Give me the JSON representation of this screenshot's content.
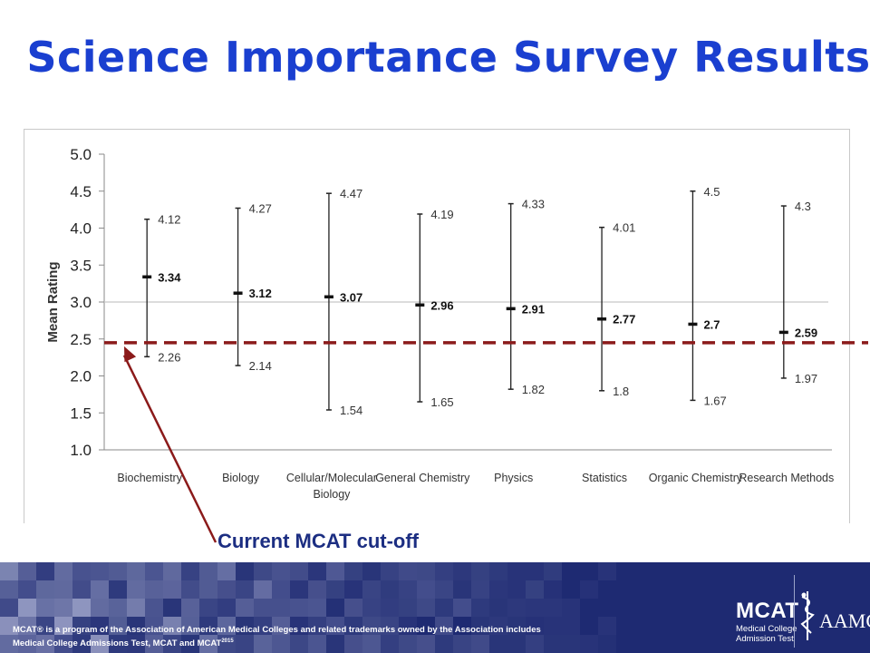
{
  "slide": {
    "title": "Science Importance Survey Results",
    "cutoff_label": "Current MCAT cut-off"
  },
  "chart_data": {
    "type": "error_bar",
    "ylabel": "Mean Rating",
    "ylim": [
      1.0,
      5.0
    ],
    "yticks": [
      "1.0",
      "1.5",
      "2.0",
      "2.5",
      "3.0",
      "3.5",
      "4.0",
      "4.5",
      "5.0"
    ],
    "categories": [
      "Biochemistry",
      "Biology",
      "Cellular/Molecular Biology",
      "General Chemistry",
      "Physics",
      "Statistics",
      "Organic Chemistry",
      "Research Methods"
    ],
    "category_lines": [
      [
        "Biochemistry"
      ],
      [
        "Biology"
      ],
      [
        "Cellular/Molecular",
        "Biology"
      ],
      [
        "General Chemistry"
      ],
      [
        "Physics"
      ],
      [
        "Statistics"
      ],
      [
        "Organic Chemistry"
      ],
      [
        "Research Methods"
      ]
    ],
    "mean": [
      3.34,
      3.12,
      3.07,
      2.96,
      2.91,
      2.77,
      2.7,
      2.59
    ],
    "high": [
      4.12,
      4.27,
      4.47,
      4.19,
      4.33,
      4.01,
      4.5,
      4.3
    ],
    "low": [
      2.26,
      2.14,
      1.54,
      1.65,
      1.82,
      1.8,
      1.67,
      1.97
    ],
    "mean_labels": [
      "3.34",
      "3.12",
      "3.07",
      "2.96",
      "2.91",
      "2.77",
      "2.7",
      "2.59"
    ],
    "high_labels": [
      "4.12",
      "4.27",
      "4.47",
      "4.19",
      "4.33",
      "4.01",
      "4.5",
      "4.3"
    ],
    "low_labels": [
      "2.26",
      "2.14",
      "1.54",
      "1.65",
      "1.82",
      "1.8",
      "1.67",
      "1.97"
    ],
    "reference_lines": [
      {
        "value": 3.0,
        "style": "solid",
        "color": "#c8c8c8"
      }
    ],
    "cutoff_line": {
      "value": 2.45,
      "style": "dashed",
      "color": "#8b1a1a"
    },
    "grid": false,
    "legend": "none"
  },
  "footer": {
    "legal_line1": "MCAT® is a program of the Association of American Medical Colleges and related trademarks owned by the Association includes",
    "legal_line2": "Medical College Admissions Test, MCAT and MCAT",
    "legal_sup": "2015",
    "logo_mcat": "MCAT",
    "logo_mcat_sub_line1": "Medical College",
    "logo_mcat_sub_line2": "Admission Test",
    "logo_aamc": "AAMC"
  },
  "colors": {
    "title": "#1a3fd0",
    "cutoff_label": "#1c2e82",
    "cutoff_line": "#8b1a1a",
    "footer_bg": "#1e2a72"
  }
}
